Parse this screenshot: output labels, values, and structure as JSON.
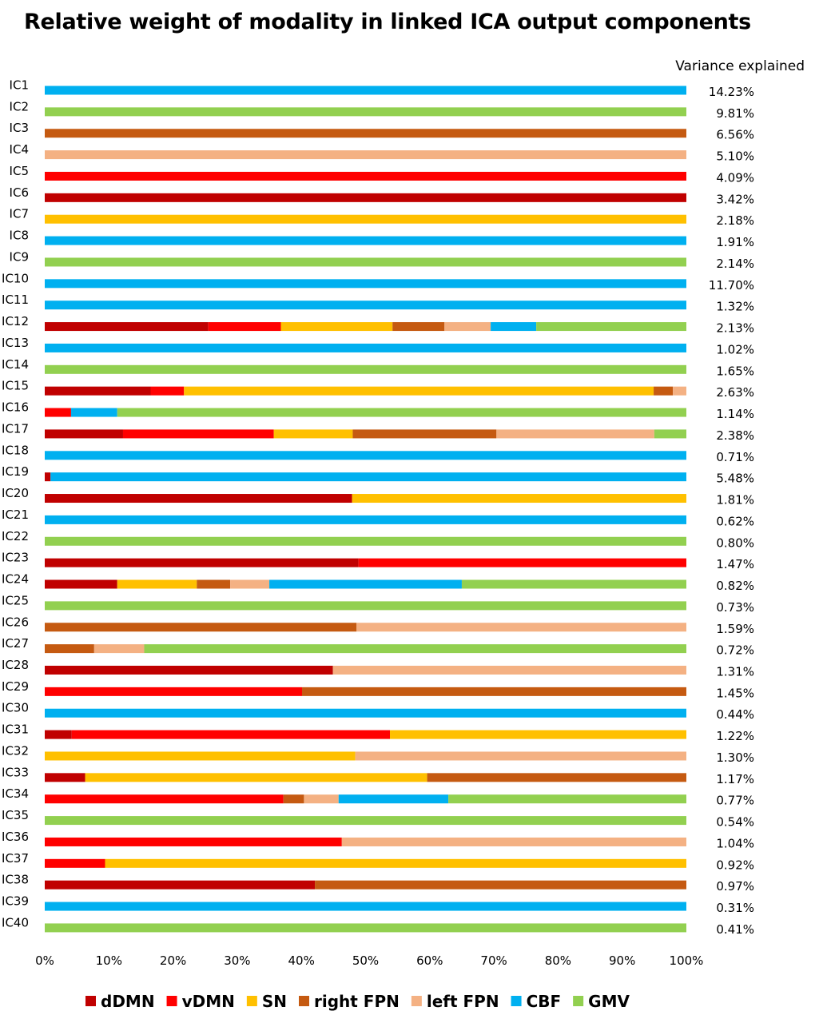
{
  "chart_data": {
    "type": "bar",
    "orientation": "horizontal",
    "stacked": true,
    "normalized_percent": true,
    "title": "Relative weight of modality in linked ICA output components",
    "xlim": [
      0,
      100
    ],
    "x_tick_labels": [
      "0%",
      "10%",
      "20%",
      "30%",
      "40%",
      "50%",
      "60%",
      "70%",
      "80%",
      "90%",
      "100%"
    ],
    "variance_header": "Variance explained",
    "legend_position": "bottom",
    "grid": false,
    "series": [
      {
        "name": "dDMN",
        "color": "#C00000"
      },
      {
        "name": "vDMN",
        "color": "#FF0000"
      },
      {
        "name": "SN",
        "color": "#FFC000"
      },
      {
        "name": "right FPN",
        "color": "#C55A11"
      },
      {
        "name": "left FPN",
        "color": "#F4B183"
      },
      {
        "name": "CBF",
        "color": "#00B0F0"
      },
      {
        "name": "GMV",
        "color": "#92D050"
      }
    ],
    "categories": [
      "IC1",
      "IC2",
      "IC3",
      "IC4",
      "IC5",
      "IC6",
      "IC7",
      "IC8",
      "IC9",
      "IC10",
      "IC11",
      "IC12",
      "IC13",
      "IC14",
      "IC15",
      "IC16",
      "IC17",
      "IC18",
      "IC19",
      "IC20",
      "IC21",
      "IC22",
      "IC23",
      "IC24",
      "IC25",
      "IC26",
      "IC27",
      "IC28",
      "IC29",
      "IC30",
      "IC31",
      "IC32",
      "IC33",
      "IC34",
      "IC35",
      "IC36",
      "IC37",
      "IC38",
      "IC39",
      "IC40"
    ],
    "variance_explained": [
      "14.23%",
      "9.81%",
      "6.56%",
      "5.10%",
      "4.09%",
      "3.42%",
      "2.18%",
      "1.91%",
      "2.14%",
      "11.70%",
      "1.32%",
      "2.13%",
      "1.02%",
      "1.65%",
      "2.63%",
      "1.14%",
      "2.38%",
      "0.71%",
      "5.48%",
      "1.81%",
      "0.62%",
      "0.80%",
      "1.47%",
      "0.82%",
      "0.73%",
      "1.59%",
      "0.72%",
      "1.31%",
      "1.45%",
      "0.44%",
      "1.22%",
      "1.30%",
      "1.17%",
      "0.77%",
      "0.54%",
      "1.04%",
      "0.92%",
      "0.97%",
      "0.31%",
      "0.41%"
    ],
    "values": [
      [
        0,
        0,
        0,
        0,
        0,
        100,
        0
      ],
      [
        0,
        0,
        0,
        0,
        0,
        0,
        100
      ],
      [
        0,
        0,
        0,
        100,
        0,
        0,
        0
      ],
      [
        0,
        0,
        0,
        0,
        100,
        0,
        0
      ],
      [
        0,
        100,
        0,
        0,
        0,
        0,
        0
      ],
      [
        100,
        0,
        0,
        0,
        0,
        0,
        0
      ],
      [
        0,
        0,
        100,
        0,
        0,
        0,
        0
      ],
      [
        0,
        0,
        0,
        0,
        0,
        100,
        0
      ],
      [
        0,
        0,
        0,
        0,
        0,
        0,
        100
      ],
      [
        0,
        0,
        0,
        0,
        0,
        100,
        0
      ],
      [
        0,
        0,
        0,
        0,
        0,
        100,
        0
      ],
      [
        25.5,
        11.3,
        17.4,
        8.1,
        7.2,
        7.1,
        23.4
      ],
      [
        0,
        0,
        0,
        0,
        0,
        100,
        0
      ],
      [
        0,
        0,
        0,
        0,
        0,
        0,
        100
      ],
      [
        16.5,
        5.2,
        73.2,
        3.0,
        2.1,
        0,
        0
      ],
      [
        0,
        4.1,
        0,
        0,
        0,
        7.2,
        88.7
      ],
      [
        12.2,
        23.5,
        12.3,
        22.4,
        24.6,
        0,
        5.0
      ],
      [
        0,
        0,
        0,
        0,
        0,
        100,
        0
      ],
      [
        0.9,
        0,
        0,
        0,
        0,
        99.1,
        0
      ],
      [
        47.9,
        0,
        52.1,
        0,
        0,
        0,
        0
      ],
      [
        0,
        0,
        0,
        0,
        0,
        100,
        0
      ],
      [
        0,
        0,
        0,
        0,
        0,
        0,
        100
      ],
      [
        48.9,
        51.1,
        0,
        0,
        0,
        0,
        0
      ],
      [
        11.3,
        0,
        12.4,
        5.2,
        6.1,
        30.0,
        35.0
      ],
      [
        0,
        0,
        0,
        0,
        0,
        0,
        100
      ],
      [
        0,
        0,
        0,
        48.6,
        51.4,
        0,
        0
      ],
      [
        0,
        0,
        0,
        7.7,
        7.8,
        0,
        84.5
      ],
      [
        44.9,
        0,
        0,
        0,
        55.1,
        0,
        0
      ],
      [
        0,
        40.1,
        0,
        59.9,
        0,
        0,
        0
      ],
      [
        0,
        0,
        0,
        0,
        0,
        100,
        0
      ],
      [
        4.2,
        49.6,
        46.2,
        0,
        0,
        0,
        0
      ],
      [
        0,
        0,
        48.4,
        0,
        51.6,
        0,
        0
      ],
      [
        6.3,
        0,
        53.3,
        40.4,
        0,
        0,
        0
      ],
      [
        0,
        37.2,
        0,
        3.2,
        5.4,
        17.1,
        37.1
      ],
      [
        0,
        0,
        0,
        0,
        0,
        0,
        100
      ],
      [
        0,
        46.3,
        0,
        0,
        53.7,
        0,
        0
      ],
      [
        0,
        9.4,
        90.6,
        0,
        0,
        0,
        0
      ],
      [
        42.1,
        0,
        0,
        57.9,
        0,
        0,
        0
      ],
      [
        0,
        0,
        0,
        0,
        0,
        100,
        0
      ],
      [
        0,
        0,
        0,
        0,
        0,
        0,
        100
      ]
    ]
  }
}
